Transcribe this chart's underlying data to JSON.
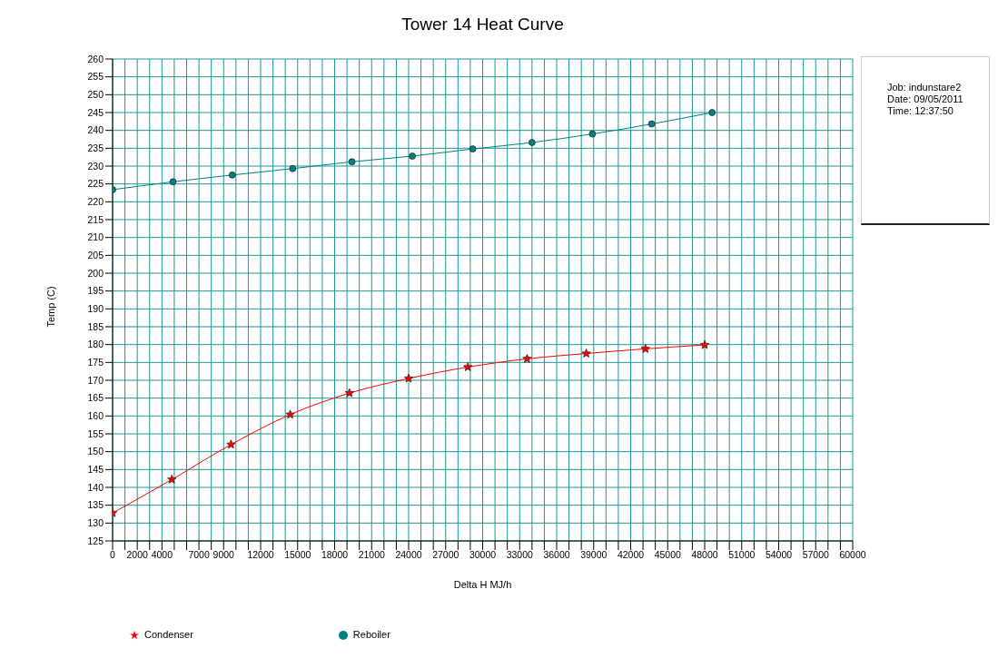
{
  "chart_data": {
    "type": "line",
    "title": "Tower 14 Heat Curve",
    "xlabel": "Delta H MJ/h",
    "ylabel": "Temp (C)",
    "annotations": [
      "Job:  indunstare2",
      "Date: 09/05/2011",
      "Time: 12:37:50"
    ],
    "series": [
      {
        "name": "Condenser",
        "color": "#ff0000",
        "marker": "star",
        "x": [
          0,
          4800,
          9600,
          14400,
          19200,
          24000,
          28800,
          33600,
          38400,
          43200,
          48000
        ],
        "values": [
          132.8,
          142.2,
          152.0,
          160.4,
          166.4,
          170.5,
          173.7,
          176.0,
          177.5,
          178.8,
          179.9
        ]
      },
      {
        "name": "Reboiler",
        "color": "#008080",
        "marker": "circle",
        "x": [
          0,
          4900,
          9700,
          14600,
          19400,
          24300,
          29200,
          34000,
          38900,
          43700,
          48600
        ],
        "values": [
          223.4,
          225.6,
          227.5,
          229.3,
          231.2,
          232.8,
          234.8,
          236.6,
          239.0,
          241.8,
          245.0
        ]
      }
    ],
    "xlim": [
      0,
      60000
    ],
    "xticks": [
      0,
      {
        "value": 1000,
        "label": null
      },
      2000,
      {
        "value": 3000,
        "label": null
      },
      4000,
      {
        "value": 5000,
        "label": null
      },
      {
        "value": 6000,
        "label": null
      },
      7000,
      {
        "value": 8000,
        "label": null
      },
      9000,
      {
        "value": 10000,
        "label": null
      },
      {
        "value": 11000,
        "label": null
      },
      12000,
      {
        "value": 13000,
        "label": null
      },
      {
        "value": 14000,
        "label": null
      },
      15000,
      {
        "value": 16000,
        "label": null
      },
      {
        "value": 17000,
        "label": null
      },
      18000,
      {
        "value": 19000,
        "label": null
      },
      {
        "value": 20000,
        "label": null
      },
      21000,
      {
        "value": 22000,
        "label": null
      },
      {
        "value": 23000,
        "label": null
      },
      24000,
      {
        "value": 25000,
        "label": null
      },
      {
        "value": 26000,
        "label": null
      },
      27000,
      {
        "value": 28000,
        "label": null
      },
      {
        "value": 29000,
        "label": null
      },
      30000,
      {
        "value": 31000,
        "label": null
      },
      {
        "value": 32000,
        "label": null
      },
      33000,
      {
        "value": 34000,
        "label": null
      },
      {
        "value": 35000,
        "label": null
      },
      36000,
      {
        "value": 37000,
        "label": null
      },
      {
        "value": 38000,
        "label": null
      },
      39000,
      {
        "value": 40000,
        "label": null
      },
      {
        "value": 41000,
        "label": null
      },
      42000,
      {
        "value": 43000,
        "label": null
      },
      {
        "value": 44000,
        "label": null
      },
      45000,
      {
        "value": 46000,
        "label": null
      },
      {
        "value": 47000,
        "label": null
      },
      48000,
      {
        "value": 49000,
        "label": null
      },
      {
        "value": 50000,
        "label": null
      },
      51000,
      {
        "value": 52000,
        "label": null
      },
      {
        "value": 53000,
        "label": null
      },
      54000,
      {
        "value": 55000,
        "label": null
      },
      {
        "value": 56000,
        "label": null
      },
      57000,
      {
        "value": 58000,
        "label": null
      },
      {
        "value": 59000,
        "label": null
      },
      60000
    ],
    "ylim": [
      125,
      260
    ],
    "yticks": [
      125,
      130,
      135,
      140,
      145,
      150,
      155,
      160,
      165,
      170,
      175,
      180,
      185,
      190,
      195,
      200,
      205,
      210,
      215,
      220,
      225,
      230,
      235,
      240,
      245,
      250,
      255,
      260
    ],
    "grid": true,
    "legend": "bottom left",
    "line_style": "solid"
  }
}
